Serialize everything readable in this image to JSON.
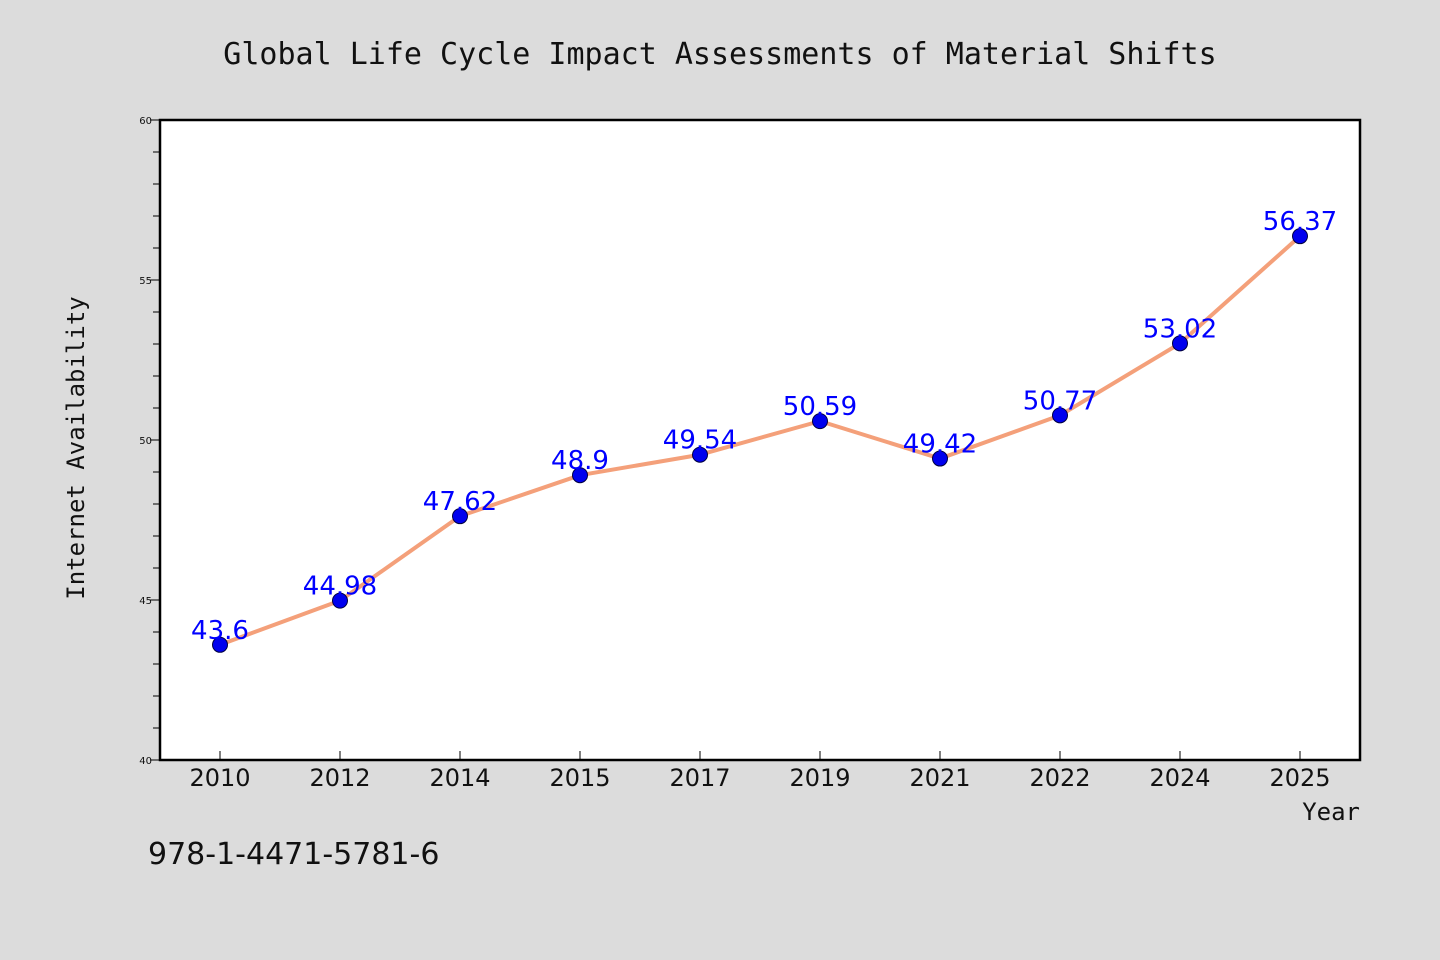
{
  "chart_data": {
    "type": "line",
    "title": "Global Life Cycle Impact Assessments of Material Shifts",
    "xlabel": "Year",
    "ylabel": "Internet Availability",
    "categories": [
      "2010",
      "2012",
      "2014",
      "2015",
      "2017",
      "2019",
      "2021",
      "2022",
      "2024",
      "2025"
    ],
    "series": [
      {
        "values": [
          43.6,
          44.98,
          47.62,
          48.9,
          49.54,
          50.59,
          49.42,
          50.77,
          53.02,
          56.37
        ],
        "data_labels": [
          "43.6",
          "44.98",
          "47.62",
          "48.9",
          "49.54",
          "50.59",
          "49.42",
          "50.77",
          "53.02",
          "56.37"
        ]
      }
    ],
    "ylim": [
      40,
      60
    ],
    "yticks": [
      "40",
      "45",
      "50",
      "55",
      "60"
    ],
    "grid": false,
    "legend": "none",
    "colors": {
      "line": "#f4a07a",
      "marker": "#0000ee",
      "data_label": "#0000ff",
      "background": "#dcdcdc",
      "plot_background": "#ffffff"
    }
  },
  "annotation": {
    "isbn": "978-1-4471-5781-6"
  }
}
